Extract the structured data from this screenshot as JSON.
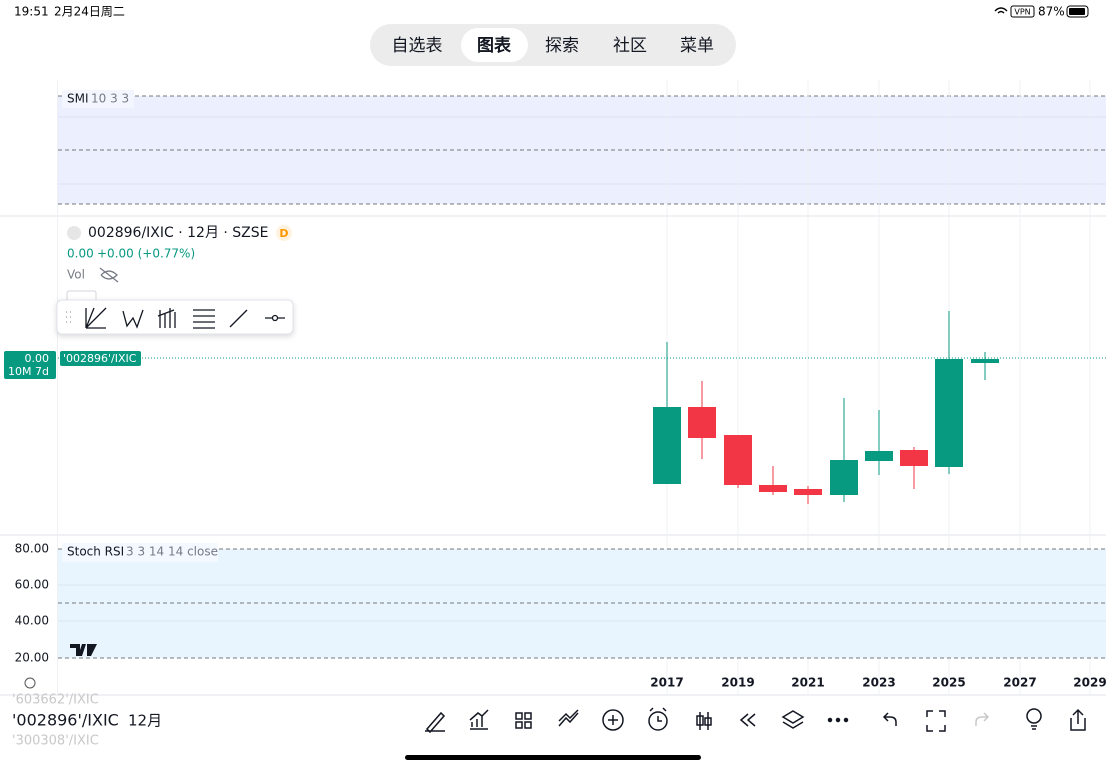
{
  "status_bar": {
    "time": "19:51",
    "date": "2月24日周二",
    "vpn": "VPN",
    "battery": "87%"
  },
  "tabs": [
    "自选表",
    "图表",
    "探索",
    "社区",
    "菜单"
  ],
  "smi": {
    "name": "SMI",
    "params": "10 3 3"
  },
  "main": {
    "symbol": "002896/IXIC · 12月 · SZSE",
    "badge": "D",
    "price": "0.00",
    "change": "+0.00 (+0.77%)",
    "volume": "Vol",
    "price_label": "0.00",
    "countdown": "10M 7d",
    "series_label": "'002896'/IXIC"
  },
  "stoch_rsi": {
    "name": "Stoch RSI",
    "params": "3 3 14 14 close",
    "levels": [
      "80.00",
      "60.00",
      "40.00",
      "20.00"
    ]
  },
  "x_axis": [
    "2017",
    "2019",
    "2021",
    "2023",
    "2025",
    "2027",
    "2029"
  ],
  "footer": {
    "symbol_prev": "'603662'/IXIC",
    "symbol": "'002896'/IXIC",
    "symbol_next": "'300308'/IXIC",
    "interval": "12月"
  }
}
